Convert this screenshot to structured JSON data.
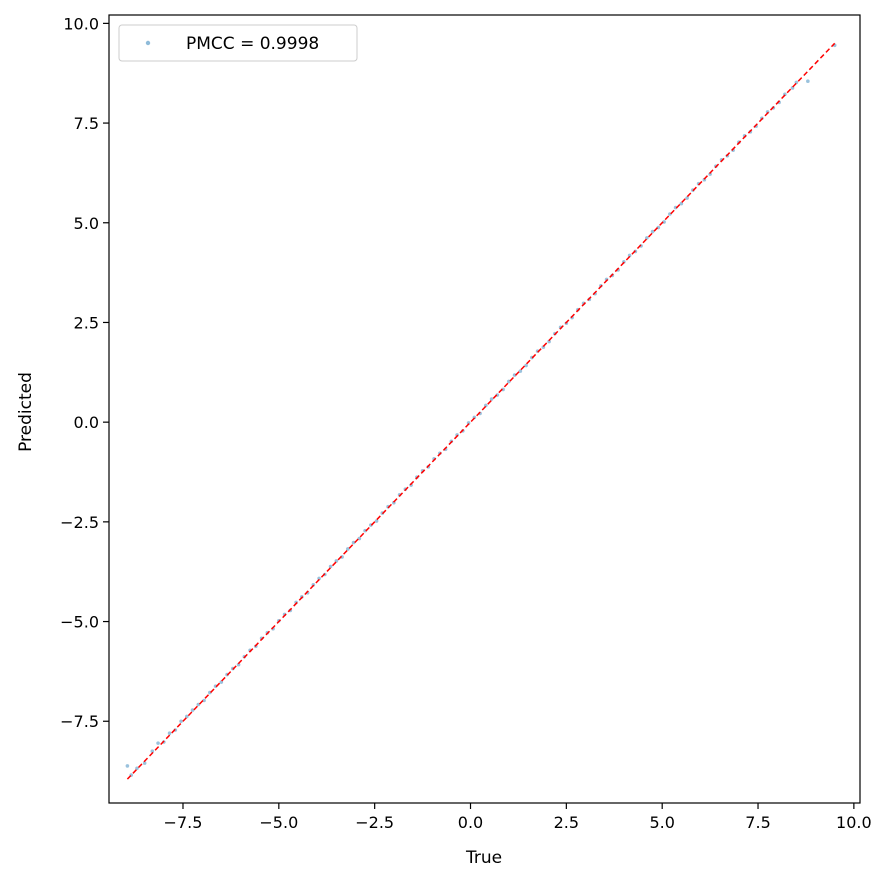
{
  "chart_data": {
    "type": "scatter",
    "xlabel": "True",
    "ylabel": "Predicted",
    "xlim": [
      -9.43,
      10.16
    ],
    "ylim": [
      -9.55,
      10.21
    ],
    "x_ticks": [
      -7.5,
      -5.0,
      -2.5,
      0.0,
      2.5,
      5.0,
      7.5,
      10.0
    ],
    "x_tick_labels": [
      "−7.5",
      "−5.0",
      "−2.5",
      "0.0",
      "2.5",
      "5.0",
      "7.5",
      "10.0"
    ],
    "y_ticks": [
      -7.5,
      -5.0,
      -2.5,
      0.0,
      2.5,
      5.0,
      7.5,
      10.0
    ],
    "y_tick_labels": [
      "−7.5",
      "−5.0",
      "−2.5",
      "0.0",
      "2.5",
      "5.0",
      "7.5",
      "10.0"
    ],
    "grid": false,
    "legend": {
      "position": "top-left",
      "entries": [
        "PMCC = 0.9998"
      ]
    },
    "series": [
      {
        "name": "PMCC = 0.9998",
        "kind": "scatter",
        "color": "#1f77b4",
        "point_alpha": 0.45,
        "points": [
          [
            -8.95,
            -8.62
          ],
          [
            -8.85,
            -8.85
          ],
          [
            -8.7,
            -8.68
          ],
          [
            -8.5,
            -8.55
          ],
          [
            -8.3,
            -8.25
          ],
          [
            -8.15,
            -8.05
          ],
          [
            -8.0,
            -8.02
          ],
          [
            -7.85,
            -7.8
          ],
          [
            -7.7,
            -7.72
          ],
          [
            -7.55,
            -7.5
          ],
          [
            -7.4,
            -7.38
          ],
          [
            -7.25,
            -7.22
          ],
          [
            -7.1,
            -7.08
          ],
          [
            -6.95,
            -6.98
          ],
          [
            -6.8,
            -6.78
          ],
          [
            -6.65,
            -6.62
          ],
          [
            -6.5,
            -6.52
          ],
          [
            -6.35,
            -6.33
          ],
          [
            -6.2,
            -6.18
          ],
          [
            -6.05,
            -6.08
          ],
          [
            -5.9,
            -5.88
          ],
          [
            -5.75,
            -5.72
          ],
          [
            -5.6,
            -5.62
          ],
          [
            -5.45,
            -5.42
          ],
          [
            -5.3,
            -5.28
          ],
          [
            -5.15,
            -5.18
          ],
          [
            -5.0,
            -4.98
          ],
          [
            -4.85,
            -4.82
          ],
          [
            -4.7,
            -4.72
          ],
          [
            -4.55,
            -4.52
          ],
          [
            -4.4,
            -4.38
          ],
          [
            -4.25,
            -4.28
          ],
          [
            -4.1,
            -4.08
          ],
          [
            -3.95,
            -3.92
          ],
          [
            -3.8,
            -3.82
          ],
          [
            -3.65,
            -3.62
          ],
          [
            -3.5,
            -3.48
          ],
          [
            -3.35,
            -3.38
          ],
          [
            -3.2,
            -3.18
          ],
          [
            -3.05,
            -3.02
          ],
          [
            -2.9,
            -2.92
          ],
          [
            -2.75,
            -2.72
          ],
          [
            -2.6,
            -2.58
          ],
          [
            -2.45,
            -2.48
          ],
          [
            -2.3,
            -2.28
          ],
          [
            -2.15,
            -2.12
          ],
          [
            -2.0,
            -2.02
          ],
          [
            -1.85,
            -1.82
          ],
          [
            -1.7,
            -1.68
          ],
          [
            -1.55,
            -1.58
          ],
          [
            -1.4,
            -1.38
          ],
          [
            -1.25,
            -1.22
          ],
          [
            -1.1,
            -1.12
          ],
          [
            -0.95,
            -0.92
          ],
          [
            -0.8,
            -0.78
          ],
          [
            -0.65,
            -0.68
          ],
          [
            -0.5,
            -0.48
          ],
          [
            -0.35,
            -0.32
          ],
          [
            -0.2,
            -0.22
          ],
          [
            -0.05,
            -0.02
          ],
          [
            0.1,
            0.12
          ],
          [
            0.25,
            0.22
          ],
          [
            0.4,
            0.42
          ],
          [
            0.55,
            0.58
          ],
          [
            0.7,
            0.68
          ],
          [
            0.85,
            0.82
          ],
          [
            1.0,
            1.02
          ],
          [
            1.15,
            1.18
          ],
          [
            1.3,
            1.28
          ],
          [
            1.45,
            1.42
          ],
          [
            1.6,
            1.62
          ],
          [
            1.75,
            1.78
          ],
          [
            1.9,
            1.88
          ],
          [
            2.05,
            2.02
          ],
          [
            2.2,
            2.22
          ],
          [
            2.35,
            2.38
          ],
          [
            2.5,
            2.48
          ],
          [
            2.65,
            2.62
          ],
          [
            2.8,
            2.82
          ],
          [
            2.95,
            2.98
          ],
          [
            3.1,
            3.08
          ],
          [
            3.25,
            3.22
          ],
          [
            3.4,
            3.42
          ],
          [
            3.55,
            3.58
          ],
          [
            3.7,
            3.68
          ],
          [
            3.85,
            3.82
          ],
          [
            4.0,
            4.02
          ],
          [
            4.15,
            4.18
          ],
          [
            4.3,
            4.28
          ],
          [
            4.45,
            4.42
          ],
          [
            4.6,
            4.62
          ],
          [
            4.75,
            4.78
          ],
          [
            4.9,
            4.88
          ],
          [
            5.05,
            5.02
          ],
          [
            5.2,
            5.22
          ],
          [
            5.35,
            5.38
          ],
          [
            5.5,
            5.48
          ],
          [
            5.65,
            5.62
          ],
          [
            5.8,
            5.82
          ],
          [
            5.95,
            5.98
          ],
          [
            6.1,
            6.08
          ],
          [
            6.25,
            6.22
          ],
          [
            6.4,
            6.42
          ],
          [
            6.55,
            6.58
          ],
          [
            6.7,
            6.68
          ],
          [
            6.85,
            6.82
          ],
          [
            7.0,
            7.02
          ],
          [
            7.15,
            7.18
          ],
          [
            7.3,
            7.28
          ],
          [
            7.45,
            7.42
          ],
          [
            7.6,
            7.62
          ],
          [
            7.75,
            7.78
          ],
          [
            7.9,
            7.88
          ],
          [
            8.05,
            8.02
          ],
          [
            8.2,
            8.22
          ],
          [
            8.4,
            8.38
          ],
          [
            8.5,
            8.52
          ],
          [
            8.8,
            8.55
          ],
          [
            9.5,
            9.45
          ]
        ]
      },
      {
        "name": "",
        "kind": "reference-line",
        "color": "#ff0000",
        "dashed": true,
        "x": [
          -8.95,
          9.5
        ],
        "y": [
          -8.95,
          9.5
        ]
      }
    ]
  }
}
